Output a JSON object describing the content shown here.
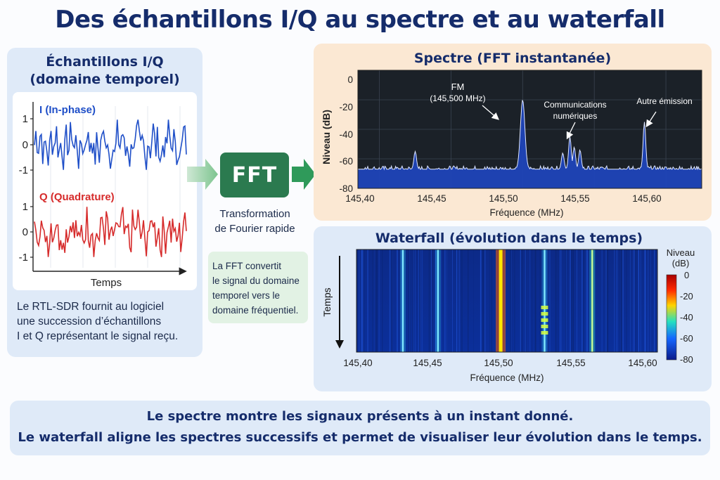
{
  "title": "Des échantillons I/Q au spectre et au waterfall",
  "left_panel": {
    "title_line1": "Échantillons I/Q",
    "title_line2": "(domaine temporel)",
    "i_label": "I (In-phase)",
    "q_label": "Q (Quadrature)",
    "y_ticks": [
      "1",
      "0",
      "-1"
    ],
    "time_label": "Temps",
    "desc_line1": "Le RTL-SDR fournit au logiciel",
    "desc_line2": "une succession d’échantillons",
    "desc_line3": "I et Q représentant le signal reçu.",
    "colors": {
      "i": "#1f4fc8",
      "q": "#d62b2b"
    }
  },
  "fft": {
    "label": "FFT",
    "caption_line1": "Transformation",
    "caption_line2": "de Fourier rapide",
    "note_line1": "La FFT convertit",
    "note_line2": "le signal du domaine",
    "note_line3": "temporel vers le",
    "note_line4": "domaine fréquentiel.",
    "color": "#2b7a4f"
  },
  "spectrum": {
    "title": "Spectre (FFT instantanée)",
    "ylabel": "Niveau (dB)",
    "xlabel": "Fréquence (MHz)",
    "y_ticks": [
      "0",
      "-20",
      "-40",
      "-60",
      "-80"
    ],
    "x_ticks": [
      "145,40",
      "145,45",
      "145,50",
      "145,55",
      "145,60"
    ],
    "annotations": {
      "fm_line1": "FM",
      "fm_line2": "(145,500 MHz)",
      "num_line1": "Communications",
      "num_line2": "numériques",
      "other": "Autre émission"
    }
  },
  "waterfall": {
    "title": "Waterfall (évolution dans le temps)",
    "time_label": "Temps",
    "xlabel": "Fréquence (MHz)",
    "x_ticks": [
      "145,40",
      "145,45",
      "145,50",
      "145,55",
      "145,60"
    ],
    "colorbar_title_line1": "Niveau",
    "colorbar_title_line2": "(dB)",
    "colorbar_ticks": [
      "0",
      "-20",
      "-40",
      "-60",
      "-80"
    ]
  },
  "bottom": {
    "line1": "Le spectre montre les signaux présents à un instant donné.",
    "line2": "Le waterfall aligne les spectres successifs et permet de visualiser leur évolution dans le temps."
  },
  "chart_data": [
    {
      "type": "line",
      "series": [
        {
          "name": "I (In-phase)"
        },
        {
          "name": "Q (Quadrature)"
        }
      ],
      "xlabel": "Temps",
      "ylim": [
        -1,
        1
      ]
    },
    {
      "type": "line",
      "xlabel": "Fréquence (MHz)",
      "ylabel": "Niveau (dB)",
      "xlim": [
        145.385,
        145.625
      ],
      "ylim": [
        -80,
        0
      ],
      "noise_floor_db": -67,
      "peaks": [
        {
          "x": 145.425,
          "y": -55
        },
        {
          "x": 145.5,
          "y": -20
        },
        {
          "x": 145.528,
          "y": -56
        },
        {
          "x": 145.533,
          "y": -45
        },
        {
          "x": 145.536,
          "y": -52
        },
        {
          "x": 145.54,
          "y": -54
        },
        {
          "x": 145.585,
          "y": -35
        }
      ]
    },
    {
      "type": "heatmap",
      "xlabel": "Fréquence (MHz)",
      "xlim": [
        145.385,
        145.625
      ],
      "zlim": [
        -80,
        0
      ],
      "colorbar_label": "Niveau (dB)",
      "lines": [
        {
          "x": 145.422,
          "level": -40
        },
        {
          "x": 145.45,
          "level": -45
        },
        {
          "x": 145.5,
          "level": -5
        },
        {
          "x": 145.535,
          "level": -45
        },
        {
          "x": 145.573,
          "level": -30
        }
      ]
    }
  ]
}
